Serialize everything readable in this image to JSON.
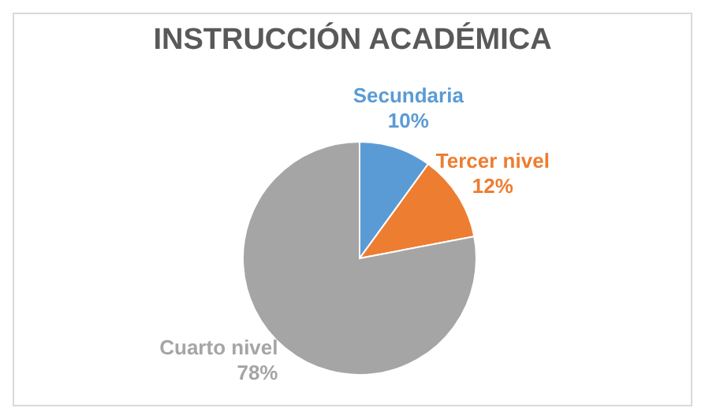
{
  "chart_data": {
    "type": "pie",
    "title": "INSTRUCCIÓN ACADÉMICA",
    "categories": [
      "Secundaria",
      "Tercer nivel",
      "Cuarto nivel"
    ],
    "values": [
      10,
      12,
      78
    ],
    "colors": [
      "#5b9bd5",
      "#ed7d31",
      "#a5a5a5"
    ],
    "value_labels": [
      "10%",
      "12%",
      "78%"
    ],
    "legend": false
  }
}
